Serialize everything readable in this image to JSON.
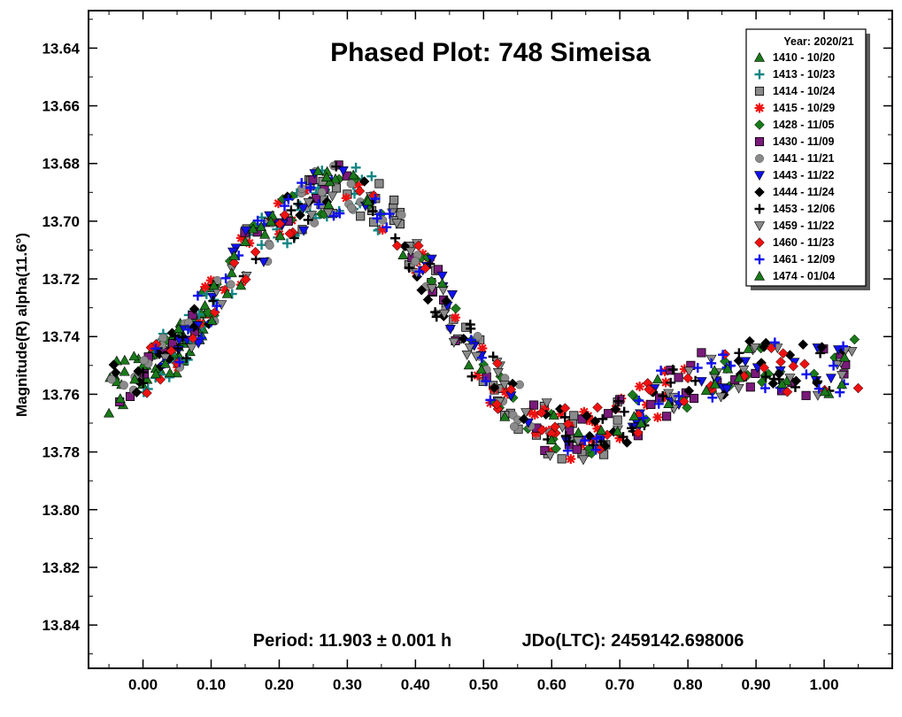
{
  "chart_data": {
    "type": "scatter",
    "title": "Phased Plot: 748 Simeisa",
    "xlabel": "",
    "ylabel": "Magnitude(R) alpha(11.6°)",
    "xlim": [
      -0.08,
      1.1
    ],
    "ylim": [
      13.627,
      13.855
    ],
    "y_inverted": true,
    "grid": false,
    "legend_position": "top-right",
    "legend_title": "Year: 2020/21",
    "x_ticks": [
      "0.00",
      "0.10",
      "0.20",
      "0.30",
      "0.40",
      "0.50",
      "0.60",
      "0.70",
      "0.80",
      "0.90",
      "1.00"
    ],
    "y_ticks": [
      "13.64",
      "13.66",
      "13.68",
      "13.70",
      "13.72",
      "13.74",
      "13.76",
      "13.78",
      "13.80",
      "13.82",
      "13.84"
    ],
    "annotation_period": "Period: 11.903 ± 0.001 h",
    "annotation_epoch": "JDo(LTC): 2459142.698006",
    "light_curve": {
      "phase": [
        0.0,
        0.05,
        0.1,
        0.15,
        0.2,
        0.25,
        0.3,
        0.35,
        0.4,
        0.45,
        0.5,
        0.55,
        0.6,
        0.65,
        0.7,
        0.75,
        0.8,
        0.85,
        0.9,
        0.95,
        1.0,
        1.05
      ],
      "magnitude": [
        13.752,
        13.745,
        13.728,
        13.712,
        13.702,
        13.692,
        13.688,
        13.695,
        13.712,
        13.732,
        13.752,
        13.765,
        13.773,
        13.775,
        13.77,
        13.762,
        13.756,
        13.752,
        13.75,
        13.751,
        13.752,
        13.749
      ]
    },
    "series": [
      {
        "name": "1410 - 10/20",
        "color": "#1a7a1a",
        "marker": "triangle-up",
        "x_range": [
          -0.05,
          0.1
        ]
      },
      {
        "name": "1413 - 10/23",
        "color": "#138585",
        "marker": "plus",
        "x_range": [
          0.0,
          0.35
        ]
      },
      {
        "name": "1414 - 10/24",
        "color": "#8a8a8a",
        "marker": "square",
        "x_range": [
          0.15,
          0.7
        ]
      },
      {
        "name": "1415 - 10/29",
        "color": "#ee1111",
        "marker": "asterisk",
        "x_range": [
          0.05,
          0.8
        ]
      },
      {
        "name": "1428 - 11/05",
        "color": "#1a7a1a",
        "marker": "diamond",
        "x_range": [
          0.0,
          1.05
        ]
      },
      {
        "name": "1430 - 11/09",
        "color": "#7a1a7a",
        "marker": "square",
        "x_range": [
          -0.05,
          1.05
        ]
      },
      {
        "name": "1441 - 11/21",
        "color": "#8a8a8a",
        "marker": "circle",
        "x_range": [
          -0.05,
          0.6
        ]
      },
      {
        "name": "1443 - 11/22",
        "color": "#1010ee",
        "marker": "triangle-down",
        "x_range": [
          0.05,
          1.05
        ]
      },
      {
        "name": "1444 - 11/24",
        "color": "#000000",
        "marker": "diamond",
        "x_range": [
          -0.05,
          1.05
        ]
      },
      {
        "name": "1453 - 12/06",
        "color": "#000000",
        "marker": "plus",
        "x_range": [
          0.0,
          1.05
        ]
      },
      {
        "name": "1459 - 11/22",
        "color": "#8a8a8a",
        "marker": "triangle-down",
        "x_range": [
          0.0,
          1.05
        ]
      },
      {
        "name": "1460 - 11/23",
        "color": "#ee1111",
        "marker": "diamond",
        "x_range": [
          0.0,
          1.05
        ]
      },
      {
        "name": "1461 - 12/09",
        "color": "#1010ee",
        "marker": "plus",
        "x_range": [
          0.0,
          1.05
        ]
      },
      {
        "name": "1474 - 01/04",
        "color": "#1a7a1a",
        "marker": "triangle-up",
        "x_range": [
          -0.05,
          1.05
        ]
      }
    ]
  }
}
